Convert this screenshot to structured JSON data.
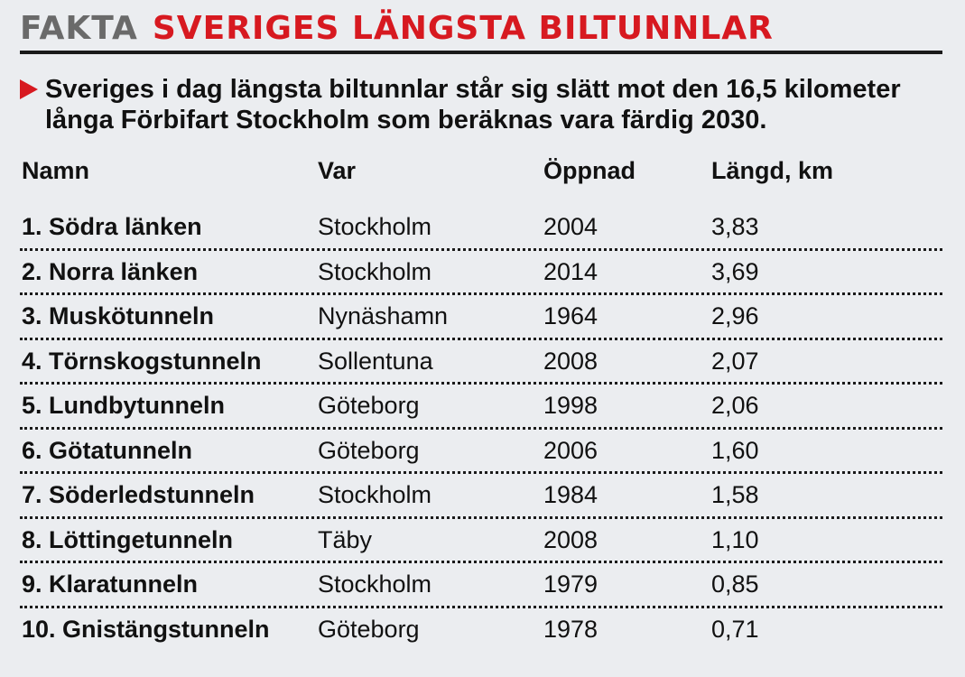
{
  "header": {
    "kicker": "FAKTA",
    "headline": "SVERIGES LÄNGSTA BILTUNNLAR"
  },
  "intro": "Sveriges i dag längsta biltunnlar står sig slätt mot den 16,5 kilometer långa Förbifart Stockholm som beräknas vara färdig 2030.",
  "table": {
    "columns": [
      "Namn",
      "Var",
      "Öppnad",
      "Längd, km"
    ],
    "rows": [
      [
        "1. Södra länken",
        "Stockholm",
        "2004",
        "3,83"
      ],
      [
        "2. Norra länken",
        "Stockholm",
        "2014",
        "3,69"
      ],
      [
        "3. Muskötunneln",
        "Nynäshamn",
        "1964",
        "2,96"
      ],
      [
        "4. Törnskogstunneln",
        "Sollentuna",
        "2008",
        "2,07"
      ],
      [
        "5. Lundbytunneln",
        "Göteborg",
        "1998",
        "2,06"
      ],
      [
        "6. Götatunneln",
        "Göteborg",
        "2006",
        "1,60"
      ],
      [
        "7. Söderledstunneln",
        "Stockholm",
        "1984",
        "1,58"
      ],
      [
        "8. Löttingetunneln",
        "Täby",
        "2008",
        "1,10"
      ],
      [
        "9. Klaratunneln",
        "Stockholm",
        "1979",
        "0,85"
      ],
      [
        "10. Gnistängstunneln",
        "Göteborg",
        "1978",
        "0,71"
      ]
    ]
  },
  "colors": {
    "accent": "#d71920",
    "kicker": "#6a6a6a",
    "background": "#ebedf0"
  }
}
